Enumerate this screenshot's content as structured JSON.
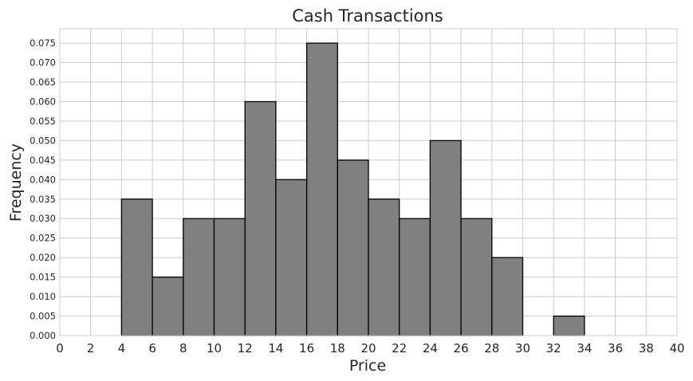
{
  "chart_data": {
    "type": "bar",
    "title": "Cash Transactions",
    "xlabel": "Price",
    "ylabel": "Frequency",
    "xlim": [
      0,
      40
    ],
    "ylim": [
      0,
      0.0787
    ],
    "x_ticks": [
      "0",
      "2",
      "4",
      "6",
      "8",
      "10",
      "12",
      "14",
      "16",
      "18",
      "20",
      "22",
      "24",
      "26",
      "28",
      "30",
      "32",
      "34",
      "36",
      "38",
      "40"
    ],
    "y_ticks": [
      "0.000",
      "0.005",
      "0.010",
      "0.015",
      "0.020",
      "0.025",
      "0.030",
      "0.035",
      "0.040",
      "0.045",
      "0.050",
      "0.055",
      "0.060",
      "0.065",
      "0.070",
      "0.075"
    ],
    "bins": [
      {
        "x0": 4,
        "x1": 6,
        "value": 0.035
      },
      {
        "x0": 6,
        "x1": 8,
        "value": 0.015
      },
      {
        "x0": 8,
        "x1": 10,
        "value": 0.03
      },
      {
        "x0": 10,
        "x1": 12,
        "value": 0.03
      },
      {
        "x0": 12,
        "x1": 14,
        "value": 0.06
      },
      {
        "x0": 14,
        "x1": 16,
        "value": 0.04
      },
      {
        "x0": 16,
        "x1": 18,
        "value": 0.075
      },
      {
        "x0": 18,
        "x1": 20,
        "value": 0.045
      },
      {
        "x0": 20,
        "x1": 22,
        "value": 0.035
      },
      {
        "x0": 22,
        "x1": 24,
        "value": 0.03
      },
      {
        "x0": 24,
        "x1": 26,
        "value": 0.05
      },
      {
        "x0": 26,
        "x1": 28,
        "value": 0.03
      },
      {
        "x0": 28,
        "x1": 30,
        "value": 0.02
      },
      {
        "x0": 32,
        "x1": 34,
        "value": 0.005
      }
    ],
    "bar_color": "#808080",
    "edge_color": "#000000",
    "grid": true
  }
}
